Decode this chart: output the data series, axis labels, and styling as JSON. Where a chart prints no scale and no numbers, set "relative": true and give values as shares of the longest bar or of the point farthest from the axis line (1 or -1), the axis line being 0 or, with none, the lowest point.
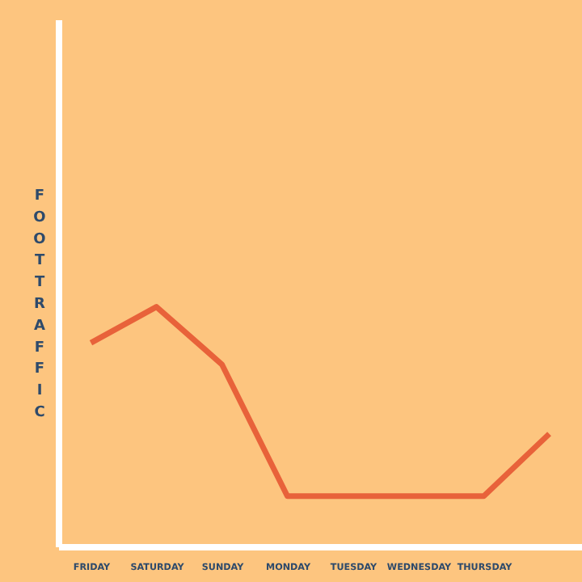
{
  "chart_data": {
    "type": "line",
    "relative": true,
    "ylabel": "FOOT TRAFFIC",
    "categories": [
      "FRIDAY",
      "SATURDAY",
      "SUNDAY",
      "MONDAY",
      "TUESDAY",
      "WEDNESDAY",
      "THURSDAY",
      null
    ],
    "series": [
      {
        "color": "#e8623a",
        "values": [
          0.85,
          1,
          0.76,
          0.21,
          0.21,
          0.21,
          0.21,
          0.47
        ]
      }
    ],
    "marker": "none",
    "line_style": "solid"
  }
}
